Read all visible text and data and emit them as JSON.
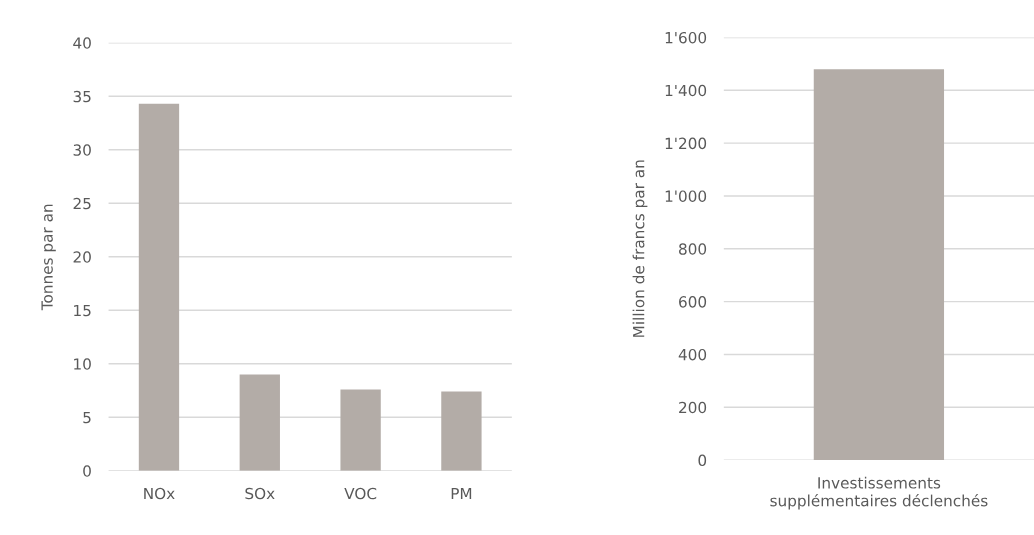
{
  "chart_data": [
    {
      "type": "bar",
      "ylabel": "Tonnes par an",
      "categories": [
        "NOx",
        "SOx",
        "VOC",
        "PM"
      ],
      "values": [
        34.3,
        9.0,
        7.6,
        7.4
      ],
      "color": "#b3aca7",
      "ylim": [
        0,
        40
      ],
      "yticks": [
        0,
        5,
        10,
        15,
        20,
        25,
        30,
        35,
        40
      ],
      "grid": "y",
      "legend": false
    },
    {
      "type": "bar",
      "ylabel": "Million de francs par an",
      "categories": [
        "Investissements\nsupplémentaires déclenchés"
      ],
      "values": [
        1480
      ],
      "color": "#b3aca7",
      "ylim": [
        0,
        1600
      ],
      "yticks": [
        0,
        200,
        400,
        600,
        800,
        {
          "value": 1000,
          "label": "1'000"
        },
        {
          "value": 1200,
          "label": "1'200"
        },
        {
          "value": 1400,
          "label": "1'400"
        },
        {
          "value": 1600,
          "label": "1'600"
        }
      ],
      "grid": "y",
      "legend": false
    }
  ]
}
